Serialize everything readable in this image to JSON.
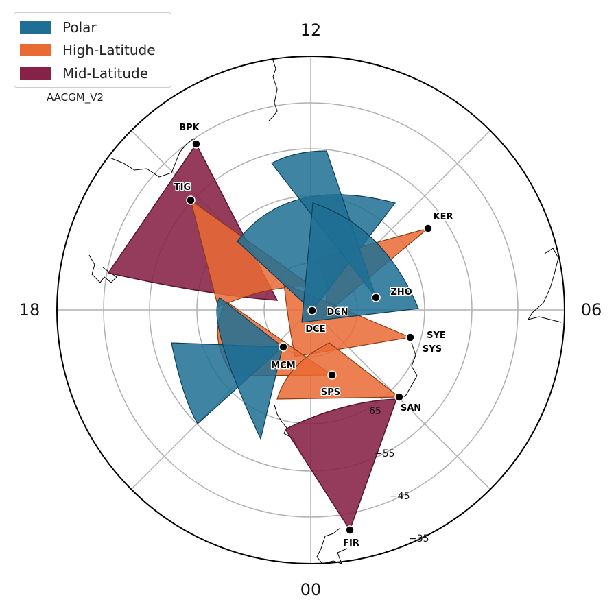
{
  "legend": {
    "items": [
      {
        "label": "Polar",
        "color": "#1f6f94"
      },
      {
        "label": "High-Latitude",
        "color": "#ea6a34"
      },
      {
        "label": "Mid-Latitude",
        "color": "#862147"
      }
    ]
  },
  "coordinate_system": "AACGM_V2",
  "hour_labels": {
    "top": "12",
    "right": "06",
    "bottom": "00",
    "left": "18"
  },
  "latitude_labels": [
    "−55",
    "−45",
    "−35"
  ],
  "partial_latitude_label": "65",
  "stations": [
    {
      "code": "BPK",
      "category": "mid"
    },
    {
      "code": "TIG",
      "category": "high"
    },
    {
      "code": "KER",
      "category": "high"
    },
    {
      "code": "ZHO",
      "category": "polar"
    },
    {
      "code": "DCN",
      "category": "polar"
    },
    {
      "code": "DCE",
      "category": "polar"
    },
    {
      "code": "SYE",
      "category": "high"
    },
    {
      "code": "SYS",
      "category": "high"
    },
    {
      "code": "MCM",
      "category": "polar"
    },
    {
      "code": "SPS",
      "category": "high"
    },
    {
      "code": "SAN",
      "category": "high"
    },
    {
      "code": "FIR",
      "category": "mid"
    }
  ]
}
